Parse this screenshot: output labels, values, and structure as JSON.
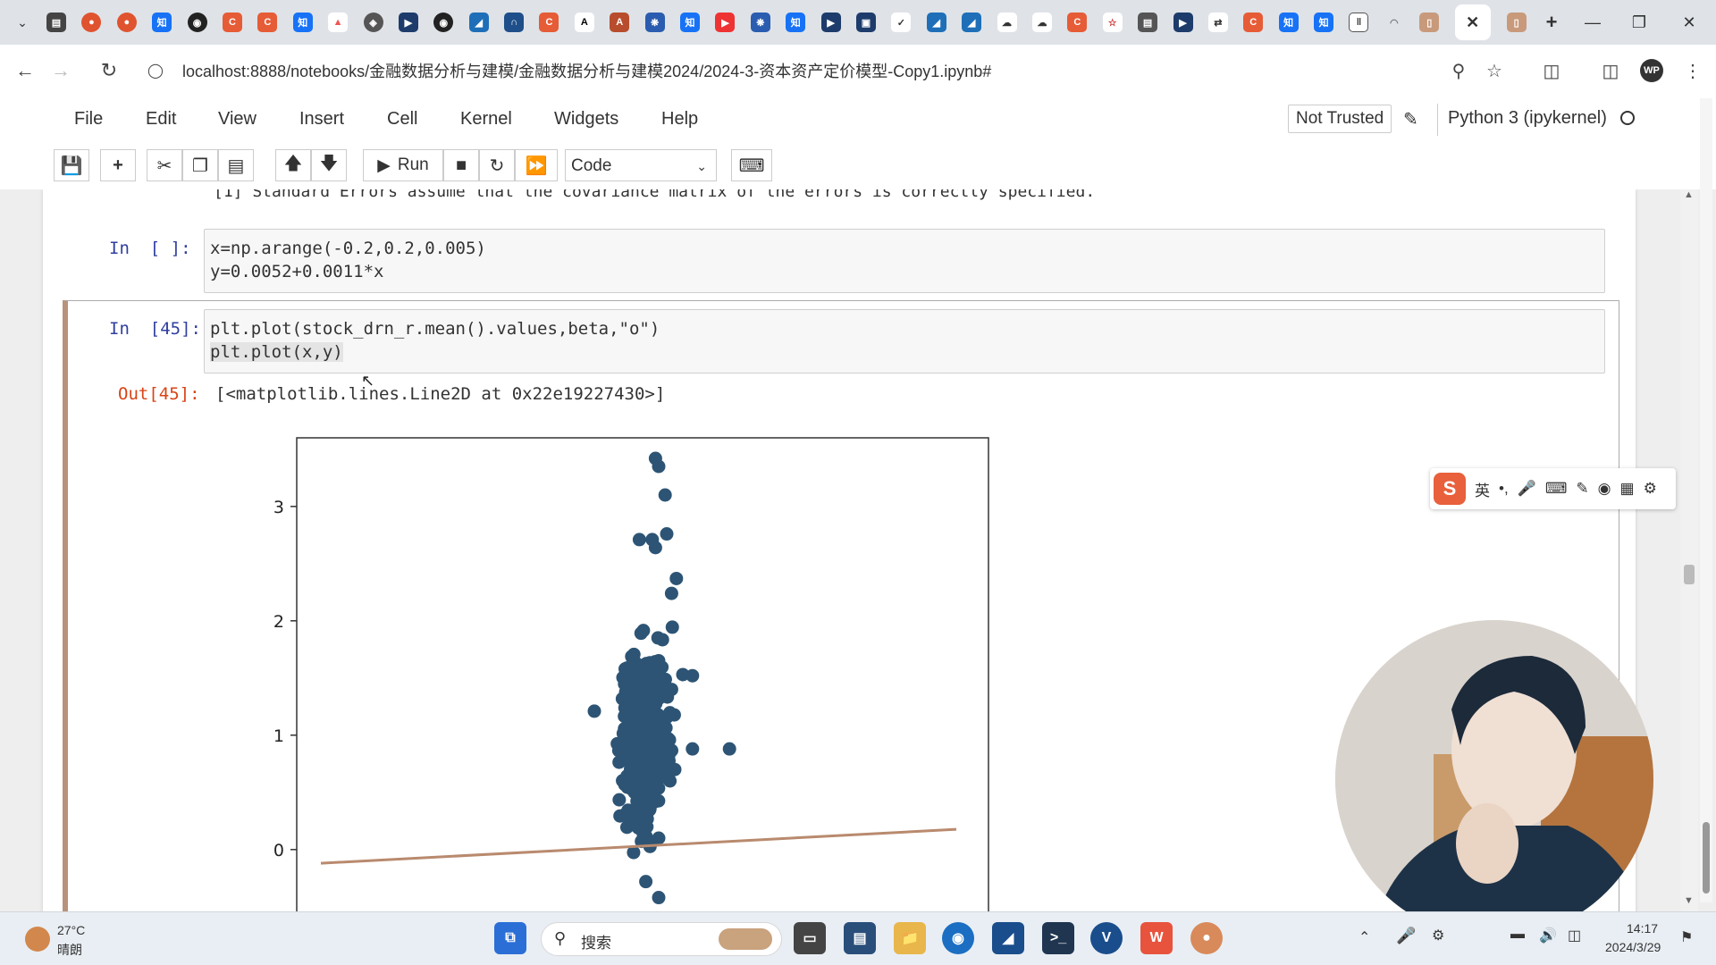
{
  "browser": {
    "tab_icons": [
      "知",
      "C",
      "知",
      "A",
      "知",
      "C",
      "知"
    ],
    "url": "localhost:8888/notebooks/金融数据分析与建模/金融数据分析与建模2024/2024-3-资本资产定价模型-Copy1.ipynb#",
    "profile_initials": "WP"
  },
  "jupyter": {
    "menu": [
      "File",
      "Edit",
      "View",
      "Insert",
      "Cell",
      "Kernel",
      "Widgets",
      "Help"
    ],
    "trust_label": "Not Trusted",
    "kernel_label": "Python 3 (ipykernel)",
    "run_label": "Run",
    "cell_type": "Code"
  },
  "notebook": {
    "truncated_text": "[1] Standard Errors assume that the covariance matrix of the errors is correctly specified.",
    "cell1": {
      "prompt": "In  [ ]:",
      "lines": [
        "x=np.arange(-0.2,0.2,0.005)",
        "y=0.0052+0.0011*x"
      ]
    },
    "cell2": {
      "prompt": "In  [45]:",
      "lines": [
        "plt.plot(stock_drn_r.mean().values,beta,\"o\")",
        "plt.plot(x,y)"
      ],
      "out_prompt": "Out[45]:",
      "output_text": "[<matplotlib.lines.Line2D at 0x22e19227430>]"
    }
  },
  "chart_data": {
    "type": "scatter",
    "title": "",
    "xlabel": "",
    "ylabel": "",
    "yticks": [
      "0",
      "1",
      "2",
      "3"
    ],
    "y_visible_range": [
      -0.5,
      3.6
    ],
    "marker_color": "#2d5474",
    "line_color": "#b98a6e",
    "series": [
      {
        "type": "scatter",
        "points_outline": [
          [
            0.008,
            3.42
          ],
          [
            0.01,
            3.35
          ],
          [
            0.014,
            3.1
          ],
          [
            0.015,
            2.76
          ],
          [
            0.006,
            2.71
          ],
          [
            0.008,
            2.64
          ],
          [
            -0.002,
            2.71
          ],
          [
            0.031,
            1.52
          ],
          [
            0.054,
            0.88
          ],
          [
            0.031,
            0.88
          ],
          [
            -0.03,
            1.21
          ],
          [
            0.021,
            2.37
          ],
          [
            0.018,
            2.24
          ],
          [
            0.018,
            1.4
          ],
          [
            0.025,
            1.53
          ],
          [
            0.02,
            0.7
          ],
          [
            0.017,
            0.6
          ],
          [
            0.01,
            0.1
          ],
          [
            0.002,
            -0.28
          ],
          [
            0.01,
            -0.42
          ]
        ],
        "cluster_center": [
          0.001,
          1.0
        ],
        "cluster_spread": [
          0.012,
          0.65
        ]
      },
      {
        "type": "line",
        "x_range": [
          -0.2,
          0.195
        ],
        "y_at_start": 0.005,
        "y_at_end": 0.0054
      }
    ]
  },
  "ime": {
    "lang": "英"
  },
  "taskbar": {
    "weather_temp": "27°C",
    "weather_desc": "晴朗",
    "search_placeholder": "搜索",
    "time": "14:17",
    "date": "2024/3/29"
  }
}
